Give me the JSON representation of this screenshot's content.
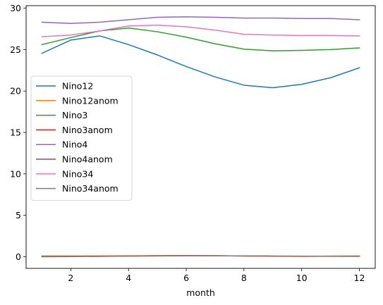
{
  "chart_data": {
    "type": "line",
    "title": "",
    "xlabel": "month",
    "ylabel": "",
    "xlim": [
      0.45,
      12.55
    ],
    "ylim": [
      -1.4,
      30.3
    ],
    "xticks": [
      2,
      4,
      6,
      8,
      10,
      12
    ],
    "yticks": [
      0,
      5,
      10,
      15,
      20,
      25,
      30
    ],
    "grid": false,
    "legend": "center-left",
    "x": [
      1,
      2,
      3,
      4,
      5,
      6,
      7,
      8,
      9,
      10,
      11,
      12
    ],
    "series": [
      {
        "name": "Nino12",
        "color": "#1f77b4",
        "values": [
          24.55,
          26.15,
          26.65,
          25.6,
          24.35,
          22.95,
          21.7,
          20.7,
          20.4,
          20.8,
          21.6,
          22.8
        ]
      },
      {
        "name": "Nino12anom",
        "color": "#ff7f0e",
        "values": [
          0.1,
          0.1,
          0.1,
          0.12,
          0.14,
          0.15,
          0.13,
          0.1,
          0.06,
          0.05,
          0.08,
          0.1
        ]
      },
      {
        "name": "Nino3",
        "color": "#2ca02c",
        "values": [
          25.6,
          26.45,
          27.25,
          27.6,
          27.15,
          26.5,
          25.7,
          25.05,
          24.85,
          24.9,
          25.0,
          25.2
        ]
      },
      {
        "name": "Nino3anom",
        "color": "#d62728",
        "values": [
          0.05,
          0.06,
          0.08,
          0.1,
          0.12,
          0.13,
          0.12,
          0.1,
          0.08,
          0.06,
          0.07,
          0.08
        ]
      },
      {
        "name": "Nino4",
        "color": "#9467bd",
        "values": [
          28.3,
          28.15,
          28.3,
          28.6,
          28.9,
          28.95,
          28.9,
          28.8,
          28.8,
          28.75,
          28.75,
          28.6
        ]
      },
      {
        "name": "Nino4anom",
        "color": "#8c564b",
        "values": [
          0.0,
          0.02,
          0.05,
          0.08,
          0.1,
          0.12,
          0.12,
          0.1,
          0.08,
          0.08,
          0.06,
          0.05
        ]
      },
      {
        "name": "Nino34",
        "color": "#e377c2",
        "values": [
          26.55,
          26.75,
          27.25,
          27.85,
          27.95,
          27.75,
          27.35,
          26.85,
          26.75,
          26.7,
          26.7,
          26.65
        ]
      },
      {
        "name": "Nino34anom",
        "color": "#7f7f7f",
        "values": [
          0.02,
          0.04,
          0.06,
          0.1,
          0.12,
          0.13,
          0.12,
          0.1,
          0.08,
          0.07,
          0.08,
          0.07
        ]
      }
    ]
  }
}
